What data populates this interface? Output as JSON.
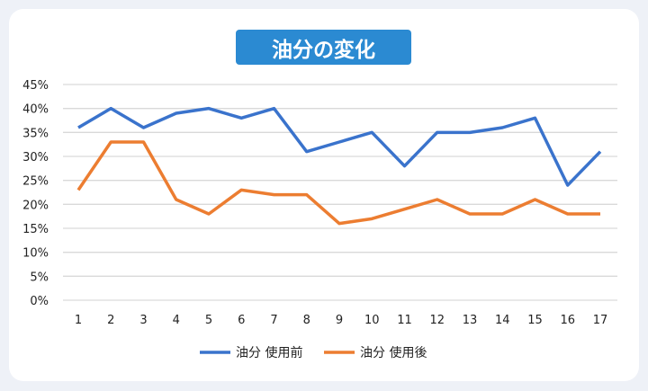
{
  "chart_data": {
    "type": "line",
    "title": "油分の変化",
    "categories": [
      "1",
      "2",
      "3",
      "4",
      "5",
      "6",
      "7",
      "8",
      "9",
      "10",
      "11",
      "12",
      "13",
      "14",
      "15",
      "16",
      "17"
    ],
    "yticks": [
      "0%",
      "5%",
      "10%",
      "15%",
      "20%",
      "25%",
      "30%",
      "35%",
      "40%",
      "45%"
    ],
    "ylim": [
      0,
      45
    ],
    "grid": true,
    "legend": "bottom",
    "series": [
      {
        "name": "油分 使用前",
        "color": "#3a73cc",
        "values": [
          36,
          40,
          36,
          39,
          40,
          38,
          40,
          31,
          33,
          35,
          28,
          35,
          35,
          36,
          38,
          24,
          31
        ]
      },
      {
        "name": "油分 使用後",
        "color": "#ec7d31",
        "values": [
          23,
          33,
          33,
          21,
          18,
          23,
          22,
          22,
          16,
          17,
          19,
          21,
          18,
          18,
          21,
          18,
          18
        ]
      }
    ]
  }
}
